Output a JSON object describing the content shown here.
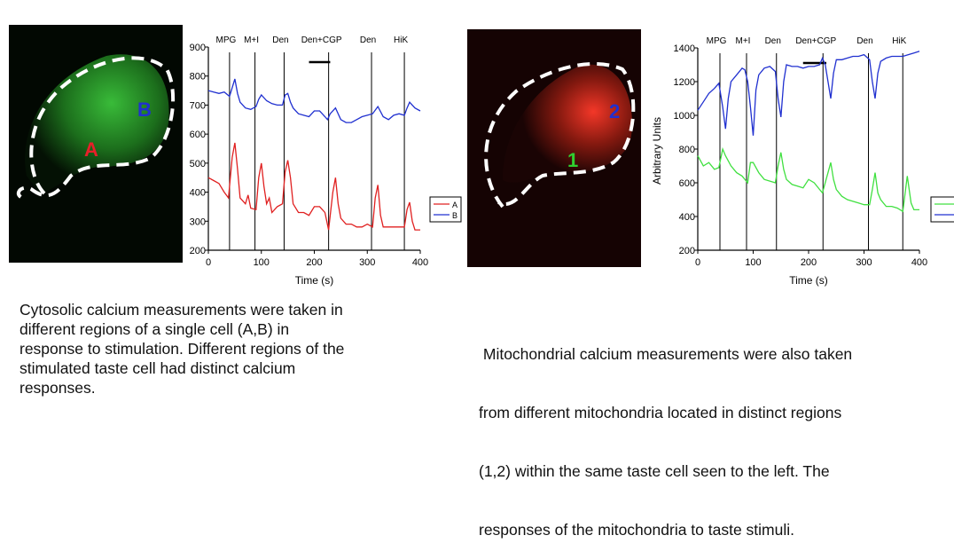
{
  "images": {
    "left": {
      "labels": [
        "A",
        "B"
      ],
      "label_colors": [
        "#e8202a",
        "#2030d0"
      ],
      "glow": "#2fbf2f"
    },
    "right": {
      "labels": [
        "1",
        "2"
      ],
      "label_colors": [
        "#30d030",
        "#2030d0"
      ],
      "glow": "#e02a1a"
    }
  },
  "captions": {
    "left": [
      "Cytosolic calcium measurements were taken in",
      "different regions of a single cell (A,B) in",
      "response to stimulation. Different regions of the",
      "stimulated taste cell had distinct calcium",
      "responses."
    ],
    "right": [
      " Mitochondrial calcium measurements were also taken",
      "from different mitochondria located in distinct regions",
      "(1,2) within the same taste cell seen to the left. The",
      "responses of the mitochondria to taste stimuli."
    ]
  },
  "chart_data": [
    {
      "type": "line",
      "title": "",
      "xlabel": "Time (s)",
      "ylabel": "",
      "xlim": [
        0,
        400
      ],
      "ylim": [
        200,
        900
      ],
      "xticks": [
        0,
        100,
        200,
        300,
        400
      ],
      "yticks": [
        200,
        300,
        400,
        500,
        600,
        700,
        800,
        900
      ],
      "legend": {
        "placement": "right",
        "entries": [
          "A",
          "B"
        ]
      },
      "events": [
        {
          "label": "MPG",
          "t": 40
        },
        {
          "label": "M+I",
          "t": 88
        },
        {
          "label": "Den",
          "t": 143
        },
        {
          "label": "Den+CGP",
          "t": 227,
          "bar": [
            190,
            230
          ]
        },
        {
          "label": "Den",
          "t": 308
        },
        {
          "label": "HiK",
          "t": 370
        }
      ],
      "series": [
        {
          "name": "A",
          "color": "#e02020",
          "points": [
            [
              0,
              450
            ],
            [
              10,
              440
            ],
            [
              20,
              430
            ],
            [
              30,
              400
            ],
            [
              38,
              380
            ],
            [
              45,
              520
            ],
            [
              50,
              570
            ],
            [
              55,
              480
            ],
            [
              60,
              380
            ],
            [
              70,
              360
            ],
            [
              75,
              390
            ],
            [
              80,
              345
            ],
            [
              90,
              340
            ],
            [
              95,
              450
            ],
            [
              100,
              500
            ],
            [
              105,
              420
            ],
            [
              110,
              360
            ],
            [
              115,
              380
            ],
            [
              120,
              330
            ],
            [
              130,
              350
            ],
            [
              140,
              360
            ],
            [
              145,
              470
            ],
            [
              150,
              510
            ],
            [
              155,
              450
            ],
            [
              160,
              360
            ],
            [
              170,
              330
            ],
            [
              180,
              330
            ],
            [
              190,
              320
            ],
            [
              200,
              350
            ],
            [
              210,
              350
            ],
            [
              220,
              330
            ],
            [
              227,
              270
            ],
            [
              235,
              400
            ],
            [
              240,
              450
            ],
            [
              245,
              360
            ],
            [
              250,
              310
            ],
            [
              260,
              290
            ],
            [
              270,
              290
            ],
            [
              280,
              280
            ],
            [
              290,
              280
            ],
            [
              300,
              290
            ],
            [
              310,
              280
            ],
            [
              315,
              380
            ],
            [
              320,
              425
            ],
            [
              325,
              320
            ],
            [
              330,
              280
            ],
            [
              340,
              280
            ],
            [
              350,
              280
            ],
            [
              360,
              280
            ],
            [
              370,
              280
            ],
            [
              375,
              340
            ],
            [
              380,
              365
            ],
            [
              385,
              300
            ],
            [
              390,
              270
            ],
            [
              400,
              270
            ]
          ]
        },
        {
          "name": "B",
          "color": "#2030d0",
          "points": [
            [
              0,
              750
            ],
            [
              10,
              745
            ],
            [
              20,
              740
            ],
            [
              30,
              745
            ],
            [
              40,
              730
            ],
            [
              45,
              760
            ],
            [
              50,
              790
            ],
            [
              55,
              740
            ],
            [
              60,
              710
            ],
            [
              70,
              690
            ],
            [
              80,
              685
            ],
            [
              90,
              695
            ],
            [
              95,
              720
            ],
            [
              100,
              735
            ],
            [
              110,
              715
            ],
            [
              120,
              705
            ],
            [
              130,
              700
            ],
            [
              140,
              700
            ],
            [
              145,
              735
            ],
            [
              150,
              740
            ],
            [
              155,
              710
            ],
            [
              160,
              690
            ],
            [
              170,
              670
            ],
            [
              180,
              665
            ],
            [
              190,
              660
            ],
            [
              200,
              680
            ],
            [
              210,
              680
            ],
            [
              220,
              660
            ],
            [
              225,
              650
            ],
            [
              230,
              670
            ],
            [
              240,
              690
            ],
            [
              250,
              650
            ],
            [
              260,
              640
            ],
            [
              270,
              640
            ],
            [
              280,
              650
            ],
            [
              290,
              660
            ],
            [
              300,
              665
            ],
            [
              310,
              670
            ],
            [
              320,
              695
            ],
            [
              330,
              660
            ],
            [
              340,
              650
            ],
            [
              350,
              665
            ],
            [
              360,
              670
            ],
            [
              370,
              665
            ],
            [
              375,
              690
            ],
            [
              380,
              710
            ],
            [
              390,
              690
            ],
            [
              400,
              680
            ]
          ]
        }
      ]
    },
    {
      "type": "line",
      "title": "",
      "xlabel": "Time (s)",
      "ylabel": "Arbitrary Units",
      "xlim": [
        0,
        400
      ],
      "ylim": [
        200,
        1400
      ],
      "xticks": [
        0,
        100,
        200,
        300,
        400
      ],
      "yticks": [
        200,
        400,
        600,
        800,
        1000,
        1200,
        1400
      ],
      "legend": {
        "placement": "right",
        "entries": []
      },
      "events": [
        {
          "label": "MPG",
          "t": 40
        },
        {
          "label": "M+I",
          "t": 88
        },
        {
          "label": "Den",
          "t": 142
        },
        {
          "label": "Den+CGP",
          "t": 226,
          "bar": [
            190,
            232
          ]
        },
        {
          "label": "Den",
          "t": 308
        },
        {
          "label": "HiK",
          "t": 370
        }
      ],
      "series": [
        {
          "name": "1",
          "color": "#40e040",
          "points": [
            [
              0,
              760
            ],
            [
              10,
              700
            ],
            [
              20,
              720
            ],
            [
              30,
              680
            ],
            [
              38,
              690
            ],
            [
              45,
              800
            ],
            [
              50,
              760
            ],
            [
              60,
              700
            ],
            [
              70,
              660
            ],
            [
              80,
              640
            ],
            [
              90,
              600
            ],
            [
              95,
              720
            ],
            [
              100,
              720
            ],
            [
              110,
              660
            ],
            [
              120,
              620
            ],
            [
              130,
              610
            ],
            [
              140,
              600
            ],
            [
              145,
              700
            ],
            [
              150,
              780
            ],
            [
              155,
              680
            ],
            [
              160,
              620
            ],
            [
              170,
              590
            ],
            [
              180,
              580
            ],
            [
              190,
              570
            ],
            [
              200,
              620
            ],
            [
              210,
              600
            ],
            [
              220,
              560
            ],
            [
              225,
              540
            ],
            [
              235,
              660
            ],
            [
              240,
              720
            ],
            [
              245,
              620
            ],
            [
              250,
              560
            ],
            [
              260,
              520
            ],
            [
              270,
              500
            ],
            [
              280,
              490
            ],
            [
              290,
              480
            ],
            [
              300,
              470
            ],
            [
              310,
              470
            ],
            [
              315,
              560
            ],
            [
              320,
              660
            ],
            [
              325,
              540
            ],
            [
              330,
              500
            ],
            [
              340,
              460
            ],
            [
              350,
              460
            ],
            [
              360,
              450
            ],
            [
              370,
              430
            ],
            [
              375,
              560
            ],
            [
              378,
              640
            ],
            [
              385,
              480
            ],
            [
              390,
              440
            ],
            [
              400,
              440
            ]
          ]
        },
        {
          "name": "2",
          "color": "#2030d0",
          "points": [
            [
              0,
              1030
            ],
            [
              10,
              1080
            ],
            [
              20,
              1130
            ],
            [
              30,
              1160
            ],
            [
              38,
              1190
            ],
            [
              45,
              1050
            ],
            [
              50,
              920
            ],
            [
              55,
              1100
            ],
            [
              60,
              1200
            ],
            [
              70,
              1240
            ],
            [
              80,
              1280
            ],
            [
              85,
              1270
            ],
            [
              90,
              1200
            ],
            [
              95,
              1050
            ],
            [
              100,
              880
            ],
            [
              105,
              1150
            ],
            [
              110,
              1240
            ],
            [
              120,
              1280
            ],
            [
              130,
              1290
            ],
            [
              140,
              1260
            ],
            [
              145,
              1100
            ],
            [
              150,
              990
            ],
            [
              155,
              1200
            ],
            [
              160,
              1300
            ],
            [
              170,
              1290
            ],
            [
              180,
              1290
            ],
            [
              190,
              1280
            ],
            [
              200,
              1290
            ],
            [
              210,
              1290
            ],
            [
              220,
              1300
            ],
            [
              225,
              1340
            ],
            [
              230,
              1300
            ],
            [
              235,
              1200
            ],
            [
              240,
              1100
            ],
            [
              245,
              1250
            ],
            [
              250,
              1330
            ],
            [
              260,
              1330
            ],
            [
              270,
              1340
            ],
            [
              280,
              1350
            ],
            [
              290,
              1350
            ],
            [
              300,
              1360
            ],
            [
              310,
              1330
            ],
            [
              315,
              1200
            ],
            [
              320,
              1100
            ],
            [
              325,
              1250
            ],
            [
              330,
              1320
            ],
            [
              340,
              1340
            ],
            [
              350,
              1350
            ],
            [
              360,
              1350
            ],
            [
              370,
              1350
            ],
            [
              380,
              1360
            ],
            [
              390,
              1370
            ],
            [
              400,
              1380
            ]
          ]
        }
      ]
    }
  ]
}
